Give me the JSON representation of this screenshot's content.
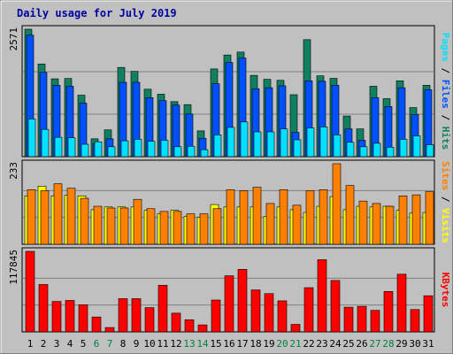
{
  "chart_data": {
    "type": "bar",
    "title": "Daily usage for July 2019",
    "categories": [
      "1",
      "2",
      "3",
      "4",
      "5",
      "6",
      "7",
      "8",
      "9",
      "10",
      "11",
      "12",
      "13",
      "14",
      "15",
      "16",
      "17",
      "18",
      "19",
      "20",
      "21",
      "22",
      "23",
      "24",
      "25",
      "26",
      "27",
      "28",
      "29",
      "30",
      "31"
    ],
    "weekend_days": [
      "6",
      "7",
      "13",
      "14",
      "20",
      "21",
      "27",
      "28"
    ],
    "panels": [
      {
        "name": "hits-files-pages",
        "max_label": "2571",
        "legend": [
          {
            "text": "Pages",
            "color": "#00e0ff"
          },
          {
            "text": " / ",
            "color": "#000000"
          },
          {
            "text": "Files",
            "color": "#0050ff"
          },
          {
            "text": " / ",
            "color": "#000000"
          },
          {
            "text": "Hits",
            "color": "#108060"
          }
        ],
        "ylim": [
          0,
          2571
        ],
        "series": [
          {
            "name": "Hits",
            "color": "#108060",
            "values": [
              2571,
              1870,
              1570,
              1577,
              1240,
              360,
              540,
              1800,
              1720,
              1360,
              1260,
              1110,
              1050,
              520,
              1770,
              2051,
              2110,
              1640,
              1560,
              1540,
              1250,
              2360,
              1630,
              1580,
              820,
              560,
              1420,
              1170,
              1530,
              990,
              1440
            ]
          },
          {
            "name": "Files",
            "color": "#0050ff",
            "values": [
              2450,
              1700,
              1440,
              1420,
              1080,
              260,
              360,
              1500,
              1500,
              1190,
              1130,
              1040,
              860,
              370,
              1470,
              1900,
              1990,
              1370,
              1390,
              1430,
              490,
              1530,
              1520,
              1440,
              560,
              330,
              1190,
              1010,
              1390,
              850,
              1350
            ]
          },
          {
            "name": "Pages",
            "color": "#00e0ff",
            "values": [
              760,
              550,
              390,
              380,
              250,
              300,
              200,
              320,
              350,
              310,
              330,
              200,
              210,
              140,
              440,
              590,
              700,
              500,
              500,
              560,
              340,
              580,
              600,
              440,
              290,
              200,
              270,
              190,
              350,
              420,
              240
            ]
          }
        ]
      },
      {
        "name": "visits-sites",
        "max_label": "233",
        "legend": [
          {
            "text": "Sites",
            "color": "#ff8000"
          },
          {
            "text": " / ",
            "color": "#000000"
          },
          {
            "text": "Visits",
            "color": "#ffff00"
          }
        ],
        "ylim": [
          0,
          233
        ],
        "series": [
          {
            "name": "Visits",
            "color": "#ffff00",
            "values": [
              140,
              168,
              140,
              142,
              140,
              100,
              108,
              108,
              108,
              98,
              88,
              98,
              80,
              78,
              115,
              108,
              108,
              108,
              80,
              108,
              100,
              92,
              110,
              138,
              100,
              110,
              108,
              110,
              98,
              90,
              92
            ]
          },
          {
            "name": "Sites",
            "color": "#ff8000",
            "values": [
              158,
              155,
              175,
              162,
              133,
              110,
              105,
              105,
              130,
              103,
              95,
              95,
              88,
              88,
              103,
              158,
              155,
              165,
              118,
              158,
              113,
              155,
              158,
              233,
              170,
              125,
              118,
              110,
              140,
              143,
              152
            ]
          }
        ]
      },
      {
        "name": "kbytes",
        "max_label": "117845",
        "legend": [
          {
            "text": "KBytes",
            "color": "#ff0000"
          }
        ],
        "ylim": [
          0,
          117845
        ],
        "series": [
          {
            "name": "KBytes",
            "color": "#ff0000",
            "values": [
              117845,
              69300,
              44500,
              46000,
              39700,
              21800,
              6400,
              48600,
              48600,
              35500,
              68200,
              27400,
              17800,
              10200,
              46600,
              82100,
              91500,
              61400,
              56000,
              45400,
              11000,
              64700,
              105600,
              75200,
              36100,
              37400,
              31500,
              59100,
              84400,
              32700,
              52900
            ]
          }
        ]
      }
    ]
  },
  "colors": {
    "weekday_label": "#000000",
    "weekend_label": "#008040",
    "plot_bg": "#c0c0c0",
    "frame_bg": "#c0c0c0"
  }
}
